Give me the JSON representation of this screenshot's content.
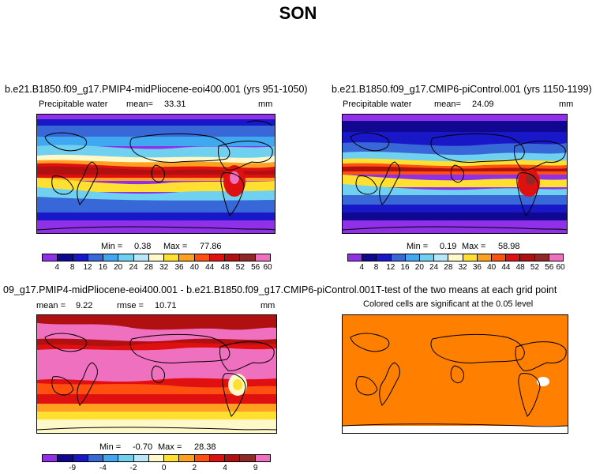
{
  "season": "SON",
  "panels": {
    "top_left": {
      "title": "b.e21.B1850.f09_g17.PMIP4-midPliocene-eoi400.001 (yrs 951-1050)",
      "variable": "Precipitable water",
      "mean_label": "mean=",
      "mean_value": "33.31",
      "units": "mm",
      "min_label": "Min =",
      "min_value": "0.38",
      "max_label": "Max =",
      "max_value": "77.86"
    },
    "top_right": {
      "title": "b.e21.B1850.f09_g17.CMIP6-piControl.001 (yrs 1150-1199)",
      "variable": "Precipitable water",
      "mean_label": "mean=",
      "mean_value": "24.09",
      "units": "mm",
      "min_label": "Min =",
      "min_value": "0.19",
      "max_label": "Max =",
      "max_value": "58.98"
    },
    "bottom_left": {
      "title": "09_g17.PMIP4-midPliocene-eoi400.001 - b.e21.B1850.f09_g17.CMIP6-piControl.001",
      "mean_label": "mean =",
      "mean_value": "9.22",
      "rmse_label": "rmse =",
      "rmse_value": "10.71",
      "units": "mm",
      "min_label": "Min =",
      "min_value": "-0.70",
      "max_label": "Max =",
      "max_value": "28.38"
    },
    "bottom_right": {
      "title": "T-test of the two means at each grid point",
      "subtitle": "Colored cells are significant at the 0.05 level"
    }
  },
  "colorbars": {
    "abs_colors": [
      "#9030e8",
      "#100890",
      "#1818c8",
      "#3868d8",
      "#40a8f0",
      "#70d0f0",
      "#b8e8f8",
      "#fff8c8",
      "#ffe030",
      "#ffa020",
      "#ff5010",
      "#e01010",
      "#b01010",
      "#902828",
      "#f070c0"
    ],
    "abs_ticks": [
      "4",
      "8",
      "12",
      "16",
      "20",
      "24",
      "28",
      "32",
      "36",
      "40",
      "44",
      "48",
      "52",
      "56",
      "60"
    ],
    "diff_colors": [
      "#9030e8",
      "#100890",
      "#1818c8",
      "#3868d8",
      "#40a8f0",
      "#70d0f0",
      "#b8e8f8",
      "#fff8c8",
      "#ffe030",
      "#ffa020",
      "#ff5010",
      "#e01010",
      "#b01010",
      "#902828",
      "#f070c0"
    ],
    "diff_ticks": [
      "-9",
      "-4",
      "-2",
      "0",
      "2",
      "4",
      "9"
    ]
  },
  "map_colors": {
    "ttest_fill": "#ff8000",
    "outline": "#000000"
  }
}
